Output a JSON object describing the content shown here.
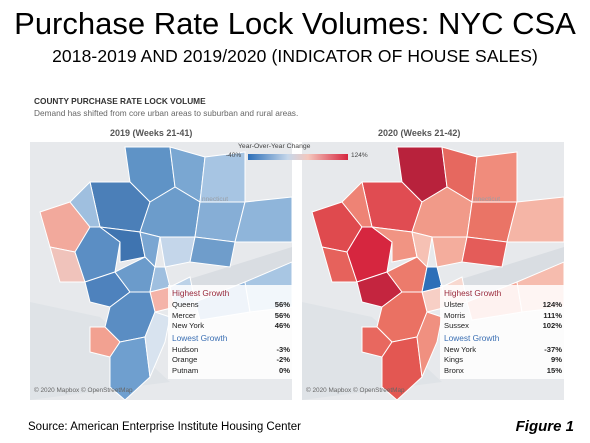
{
  "title": "Purchase Rate Lock Volumes: NYC CSA",
  "subtitle": "2018-2019 AND 2019/2020 (INDICATOR OF HOUSE SALES)",
  "panel": {
    "header": "COUNTY PURCHASE RATE LOCK VOLUME",
    "description": "Demand has shifted from core urban areas to suburban and rural areas."
  },
  "legend": {
    "title": "Year-Over-Year Change",
    "min_label": "-40%",
    "max_label": "124%",
    "colors": {
      "min": "#2d6fb8",
      "max": "#d6263f"
    }
  },
  "maps": [
    {
      "title": "2019 (Weeks 21-41)",
      "highest_label": "Highest Growth",
      "highest": [
        {
          "name": "Queens",
          "value": "56%"
        },
        {
          "name": "Mercer",
          "value": "56%"
        },
        {
          "name": "New York",
          "value": "46%"
        }
      ],
      "lowest_label": "Lowest Growth",
      "lowest": [
        {
          "name": "Hudson",
          "value": "-3%"
        },
        {
          "name": "Orange",
          "value": "-2%"
        },
        {
          "name": "Putnam",
          "value": "0%"
        }
      ],
      "credit": "© 2020 Mapbox © OpenStreetMap",
      "place_label": "nnecticut"
    },
    {
      "title": "2020 (Weeks 21-42)",
      "highest_label": "Highest Growth",
      "highest": [
        {
          "name": "Ulster",
          "value": "124%"
        },
        {
          "name": "Morris",
          "value": "111%"
        },
        {
          "name": "Sussex",
          "value": "102%"
        }
      ],
      "lowest_label": "Lowest Growth",
      "lowest": [
        {
          "name": "New York",
          "value": "-37%"
        },
        {
          "name": "Kings",
          "value": "9%"
        },
        {
          "name": "Bronx",
          "value": "15%"
        }
      ],
      "credit": "© 2020 Mapbox © OpenStreetMap",
      "place_label": "nnecticut"
    }
  ],
  "source": "Source: American Enterprise Institute Housing Center",
  "figure_label": "Figure 1"
}
